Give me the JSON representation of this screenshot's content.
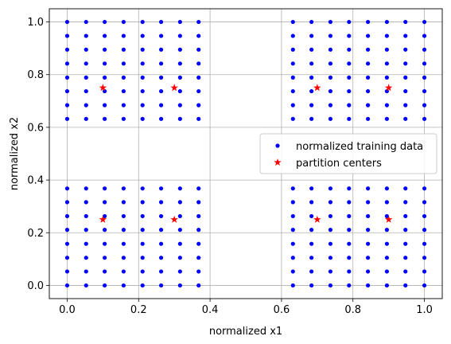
{
  "chart_data": {
    "type": "scatter",
    "xlabel": "normalized x1",
    "ylabel": "normalized x2",
    "xlim": [
      -0.05,
      1.05
    ],
    "ylim": [
      -0.05,
      1.05
    ],
    "xticks": [
      "0.0",
      "0.2",
      "0.4",
      "0.6",
      "0.8",
      "1.0"
    ],
    "yticks": [
      "0.0",
      "0.2",
      "0.4",
      "0.6",
      "0.8",
      "1.0"
    ],
    "grid": true,
    "legend_position": "center-right",
    "series": [
      {
        "name": "normalized training data",
        "marker": "dot",
        "color": "#0000ff",
        "x_levels": [
          0,
          0.053,
          0.105,
          0.158,
          0.211,
          0.263,
          0.316,
          0.368,
          0.632,
          0.684,
          0.737,
          0.789,
          0.842,
          0.895,
          0.947,
          1.0
        ],
        "y_levels": [
          0,
          0.053,
          0.105,
          0.158,
          0.211,
          0.263,
          0.316,
          0.368,
          0.632,
          0.684,
          0.737,
          0.789,
          0.842,
          0.895,
          0.947,
          1.0
        ]
      },
      {
        "name": "partition centers",
        "marker": "star",
        "color": "#ff0000",
        "points": [
          [
            0.1,
            0.75
          ],
          [
            0.3,
            0.75
          ],
          [
            0.7,
            0.75
          ],
          [
            0.9,
            0.75
          ],
          [
            0.1,
            0.25
          ],
          [
            0.3,
            0.25
          ],
          [
            0.7,
            0.25
          ],
          [
            0.9,
            0.25
          ]
        ]
      }
    ]
  }
}
